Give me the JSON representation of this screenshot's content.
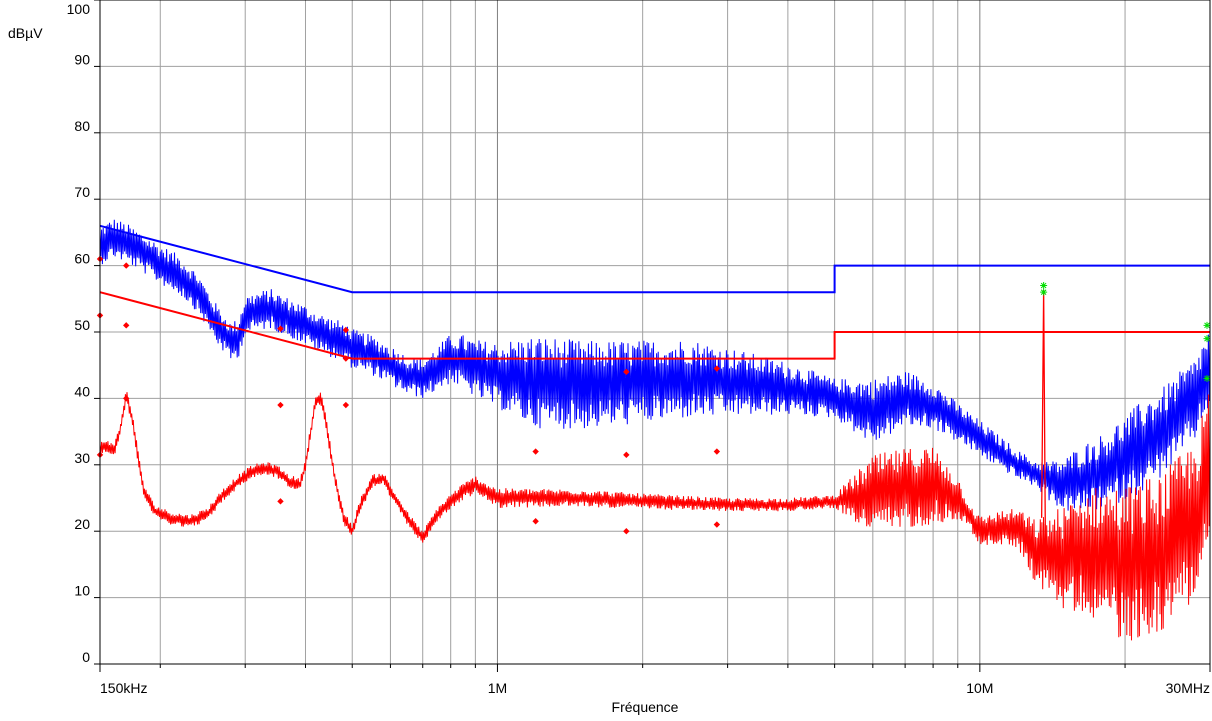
{
  "chart_data": {
    "type": "line",
    "title": "",
    "xlabel": "Fréquence",
    "ylabel": "dBµV",
    "x_scale": "log",
    "xlim": [
      150000,
      30000000
    ],
    "ylim": [
      0,
      100
    ],
    "grid": true,
    "y_ticks": [
      {
        "value": 0,
        "label": "0"
      },
      {
        "value": 10,
        "label": "10"
      },
      {
        "value": 20,
        "label": "20"
      },
      {
        "value": 30,
        "label": "30"
      },
      {
        "value": 40,
        "label": "40"
      },
      {
        "value": 50,
        "label": "50"
      },
      {
        "value": 60,
        "label": "60"
      },
      {
        "value": 70,
        "label": "70"
      },
      {
        "value": 80,
        "label": "80"
      },
      {
        "value": 90,
        "label": "90"
      },
      {
        "value": 100,
        "label": "100"
      }
    ],
    "x_ticks": [
      {
        "value": 150000,
        "label": "150kHz"
      },
      {
        "value": 1000000,
        "label": "1M"
      },
      {
        "value": 10000000,
        "label": "10M"
      },
      {
        "value": 30000000,
        "label": "30MHz"
      }
    ],
    "x_minor_grid": [
      200000,
      300000,
      400000,
      500000,
      600000,
      700000,
      800000,
      900000,
      2000000,
      3000000,
      4000000,
      5000000,
      6000000,
      7000000,
      8000000,
      9000000,
      20000000
    ],
    "colors": {
      "qp": "#0000ff",
      "avg": "#ff0000",
      "marker": "#00dd00"
    },
    "series": [
      {
        "style": "limit",
        "color": "#0000ff",
        "points": [
          [
            150000,
            66
          ],
          [
            500000,
            56
          ],
          [
            5000000,
            56
          ],
          [
            5000000,
            60
          ],
          [
            30000000,
            60
          ]
        ]
      },
      {
        "style": "limit",
        "color": "#ff0000",
        "points": [
          [
            150000,
            56
          ],
          [
            500000,
            46
          ],
          [
            5000000,
            46
          ],
          [
            5000000,
            50
          ],
          [
            30000000,
            50
          ]
        ]
      },
      {
        "style": "trace",
        "color": "#0000ff",
        "points": [
          [
            150000,
            63
          ],
          [
            160000,
            64.2
          ],
          [
            170000,
            63.4
          ],
          [
            180000,
            62.4
          ],
          [
            200000,
            60.2
          ],
          [
            220000,
            58.5
          ],
          [
            240000,
            55.8
          ],
          [
            260000,
            51.5
          ],
          [
            280000,
            48.5
          ],
          [
            290000,
            49
          ],
          [
            300000,
            52.5
          ],
          [
            320000,
            53.2
          ],
          [
            340000,
            53.5
          ],
          [
            360000,
            52.5
          ],
          [
            380000,
            51.8
          ],
          [
            400000,
            51
          ],
          [
            420000,
            50.2
          ],
          [
            440000,
            49.5
          ],
          [
            460000,
            49
          ],
          [
            480000,
            48.5
          ],
          [
            500000,
            47.5
          ],
          [
            550000,
            46.5
          ],
          [
            600000,
            45
          ],
          [
            650000,
            43.5
          ],
          [
            700000,
            43
          ],
          [
            750000,
            44.5
          ],
          [
            800000,
            46
          ],
          [
            850000,
            45.5
          ],
          [
            900000,
            44.5
          ],
          [
            1000000,
            43.5
          ],
          [
            1200000,
            42.5
          ],
          [
            1500000,
            42
          ],
          [
            2000000,
            42.5
          ],
          [
            2500000,
            43
          ],
          [
            3000000,
            42.5
          ],
          [
            4000000,
            41.5
          ],
          [
            5000000,
            40
          ],
          [
            6000000,
            38
          ],
          [
            7000000,
            40
          ],
          [
            8000000,
            39
          ],
          [
            10000000,
            34
          ],
          [
            12000000,
            30
          ],
          [
            14000000,
            27.5
          ],
          [
            15000000,
            27
          ],
          [
            18000000,
            29
          ],
          [
            20000000,
            31
          ],
          [
            24000000,
            35
          ],
          [
            28000000,
            40
          ],
          [
            30000000,
            45
          ]
        ],
        "noise": [
          [
            700000,
            3
          ],
          [
            1000000,
            5
          ],
          [
            1200000,
            7
          ],
          [
            2500000,
            6
          ],
          [
            4000000,
            4
          ],
          [
            5000000,
            3
          ],
          [
            6000000,
            5
          ],
          [
            9000000,
            3
          ],
          [
            13000000,
            2
          ],
          [
            16000000,
            5
          ],
          [
            22000000,
            7
          ],
          [
            30000000,
            6
          ]
        ]
      },
      {
        "style": "trace",
        "color": "#ff0000",
        "points": [
          [
            150000,
            32.5
          ],
          [
            155000,
            33
          ],
          [
            160000,
            32
          ],
          [
            165000,
            35
          ],
          [
            170000,
            40.5
          ],
          [
            175000,
            37
          ],
          [
            180000,
            31
          ],
          [
            185000,
            26
          ],
          [
            195000,
            23
          ],
          [
            210000,
            22
          ],
          [
            230000,
            21.5
          ],
          [
            250000,
            22.5
          ],
          [
            270000,
            25.5
          ],
          [
            290000,
            27.5
          ],
          [
            310000,
            29
          ],
          [
            330000,
            29.5
          ],
          [
            350000,
            29
          ],
          [
            370000,
            27.5
          ],
          [
            390000,
            27
          ],
          [
            400000,
            30
          ],
          [
            410000,
            35
          ],
          [
            420000,
            39.5
          ],
          [
            430000,
            40
          ],
          [
            440000,
            37
          ],
          [
            460000,
            28
          ],
          [
            480000,
            22
          ],
          [
            500000,
            20
          ],
          [
            520000,
            24
          ],
          [
            550000,
            27.5
          ],
          [
            580000,
            28
          ],
          [
            600000,
            26
          ],
          [
            650000,
            22
          ],
          [
            700000,
            19
          ],
          [
            750000,
            22.5
          ],
          [
            800000,
            24.5
          ],
          [
            850000,
            26
          ],
          [
            900000,
            27
          ],
          [
            1000000,
            25
          ],
          [
            1500000,
            25
          ],
          [
            2000000,
            24.5
          ],
          [
            3000000,
            24
          ],
          [
            4000000,
            24
          ],
          [
            5000000,
            24.5
          ],
          [
            6000000,
            25.5
          ],
          [
            7000000,
            26.5
          ],
          [
            8000000,
            27
          ],
          [
            9000000,
            25
          ],
          [
            10000000,
            20
          ],
          [
            11000000,
            20.5
          ],
          [
            12000000,
            20.5
          ],
          [
            13000000,
            17
          ],
          [
            15000000,
            16
          ],
          [
            17000000,
            17
          ],
          [
            20000000,
            15
          ],
          [
            24000000,
            17
          ],
          [
            28000000,
            22
          ],
          [
            30000000,
            30
          ]
        ],
        "noise": [
          [
            700000,
            1
          ],
          [
            1000000,
            1.5
          ],
          [
            3000000,
            1
          ],
          [
            5000000,
            1
          ],
          [
            6000000,
            6
          ],
          [
            8000000,
            6
          ],
          [
            9500000,
            2
          ],
          [
            12000000,
            3
          ],
          [
            15000000,
            8
          ],
          [
            20000000,
            12
          ],
          [
            25000000,
            12
          ],
          [
            30000000,
            12
          ]
        ]
      }
    ],
    "spike": {
      "x": 13560000,
      "peak": 56.3,
      "color": "#ff0000"
    },
    "qp_markers": [
      {
        "x": 150000,
        "y": 61
      },
      {
        "x": 170000,
        "y": 60
      },
      {
        "x": 355000,
        "y": 50.5
      },
      {
        "x": 485000,
        "y": 50.3
      },
      {
        "x": 150000,
        "y": 52.5
      },
      {
        "x": 170000,
        "y": 51
      },
      {
        "x": 485000,
        "y": 46
      },
      {
        "x": 1850000,
        "y": 44
      },
      {
        "x": 2850000,
        "y": 44.5
      },
      {
        "x": 150000,
        "y": 31.5
      },
      {
        "x": 170000,
        "y": 40
      },
      {
        "x": 355000,
        "y": 39
      },
      {
        "x": 485000,
        "y": 39
      },
      {
        "x": 1200000,
        "y": 32
      },
      {
        "x": 1850000,
        "y": 31.5
      },
      {
        "x": 2850000,
        "y": 32
      }
    ],
    "avg_markers": [
      {
        "x": 355000,
        "y": 24.5
      },
      {
        "x": 1200000,
        "y": 21.5
      },
      {
        "x": 1850000,
        "y": 20
      },
      {
        "x": 2850000,
        "y": 21
      }
    ],
    "green_markers": [
      {
        "x": 13560000,
        "y": 57
      },
      {
        "x": 13560000,
        "y": 56
      },
      {
        "x": 30000000,
        "y": 51
      },
      {
        "x": 30000000,
        "y": 49
      },
      {
        "x": 30000000,
        "y": 43
      }
    ]
  }
}
